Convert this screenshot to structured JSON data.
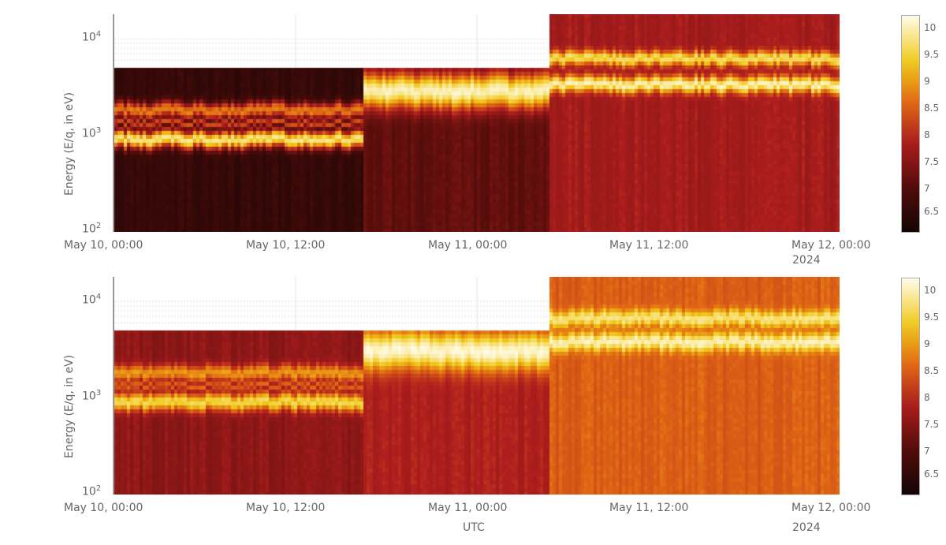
{
  "chart_data": [
    {
      "type": "heatmap",
      "title": "",
      "panel": "top",
      "ylabel": "Energy (E/q, in eV)",
      "xlabel": "",
      "yscale": "log",
      "ylim": [
        100,
        18000
      ],
      "yticks": [
        "10^2",
        "10^3",
        "10^4"
      ],
      "xticks": [
        "May 10, 00:00",
        "May 10, 12:00",
        "May 11, 00:00",
        "May 11, 12:00",
        "May 12, 00:00"
      ],
      "x_extra_label": "2024",
      "colorbar": {
        "ticks": [
          6.5,
          7,
          7.5,
          8,
          8.5,
          9,
          9.5,
          10
        ],
        "range": [
          6.3,
          10.2
        ],
        "colormap": "hot"
      },
      "segments": [
        {
          "x_start_hour": 0,
          "x_end_hour": 16.5,
          "e_max": 5000,
          "background": 6.7,
          "bands": [
            {
              "e_center": 950,
              "width_dec": 0.09,
              "peak": 9.8
            },
            {
              "e_center": 1900,
              "width_dec": 0.08,
              "peak": 8.8
            },
            {
              "e_center": 1400,
              "width_dec": 0.04,
              "peak": 8.4
            }
          ]
        },
        {
          "x_start_hour": 16.5,
          "x_end_hour": 28.8,
          "e_max": 5000,
          "background": 7.2,
          "bands": [
            {
              "e_center": 3000,
              "width_dec": 0.18,
              "peak": 10.0
            }
          ]
        },
        {
          "x_start_hour": 28.8,
          "x_end_hour": 48,
          "e_max": 18000,
          "background": 7.8,
          "bands": [
            {
              "e_center": 3500,
              "width_dec": 0.08,
              "peak": 10.0
            },
            {
              "e_center": 6500,
              "width_dec": 0.07,
              "peak": 9.7
            }
          ]
        }
      ]
    },
    {
      "type": "heatmap",
      "title": "",
      "panel": "bottom",
      "ylabel": "Energy (E/q, in eV)",
      "xlabel": "UTC",
      "yscale": "log",
      "ylim": [
        100,
        18000
      ],
      "yticks": [
        "10^2",
        "10^3",
        "10^4"
      ],
      "xticks": [
        "May 10, 00:00",
        "May 10, 12:00",
        "May 11, 00:00",
        "May 11, 12:00",
        "May 12, 00:00"
      ],
      "x_extra_label": "2024",
      "colorbar": {
        "ticks": [
          6.5,
          7,
          7.5,
          8,
          8.5,
          9,
          9.5,
          10
        ],
        "range": [
          6.3,
          10.2
        ],
        "colormap": "hot"
      },
      "segments": [
        {
          "x_start_hour": 0,
          "x_end_hour": 16.5,
          "e_max": 5000,
          "background": 7.6,
          "bands": [
            {
              "e_center": 950,
              "width_dec": 0.09,
              "peak": 9.6
            },
            {
              "e_center": 1900,
              "width_dec": 0.08,
              "peak": 9.0
            },
            {
              "e_center": 1400,
              "width_dec": 0.04,
              "peak": 8.6
            }
          ]
        },
        {
          "x_start_hour": 16.5,
          "x_end_hour": 28.8,
          "e_max": 5000,
          "background": 7.9,
          "bands": [
            {
              "e_center": 3200,
              "width_dec": 0.2,
              "peak": 10.1
            }
          ]
        },
        {
          "x_start_hour": 28.8,
          "x_end_hour": 48,
          "e_max": 18000,
          "background": 8.5,
          "bands": [
            {
              "e_center": 4000,
              "width_dec": 0.09,
              "peak": 10.0
            },
            {
              "e_center": 7000,
              "width_dec": 0.08,
              "peak": 9.8
            }
          ]
        }
      ]
    }
  ],
  "labels": {
    "ylabel": "Energy (E/q, in eV)",
    "xlabel": "UTC",
    "year": "2024",
    "xticks": [
      "May 10, 00:00",
      "May 10, 12:00",
      "May 11, 00:00",
      "May 11, 12:00",
      "May 12, 00:00"
    ],
    "cbticks": [
      "10",
      "9.5",
      "9",
      "8.5",
      "8",
      "7.5",
      "7",
      "6.5"
    ]
  }
}
